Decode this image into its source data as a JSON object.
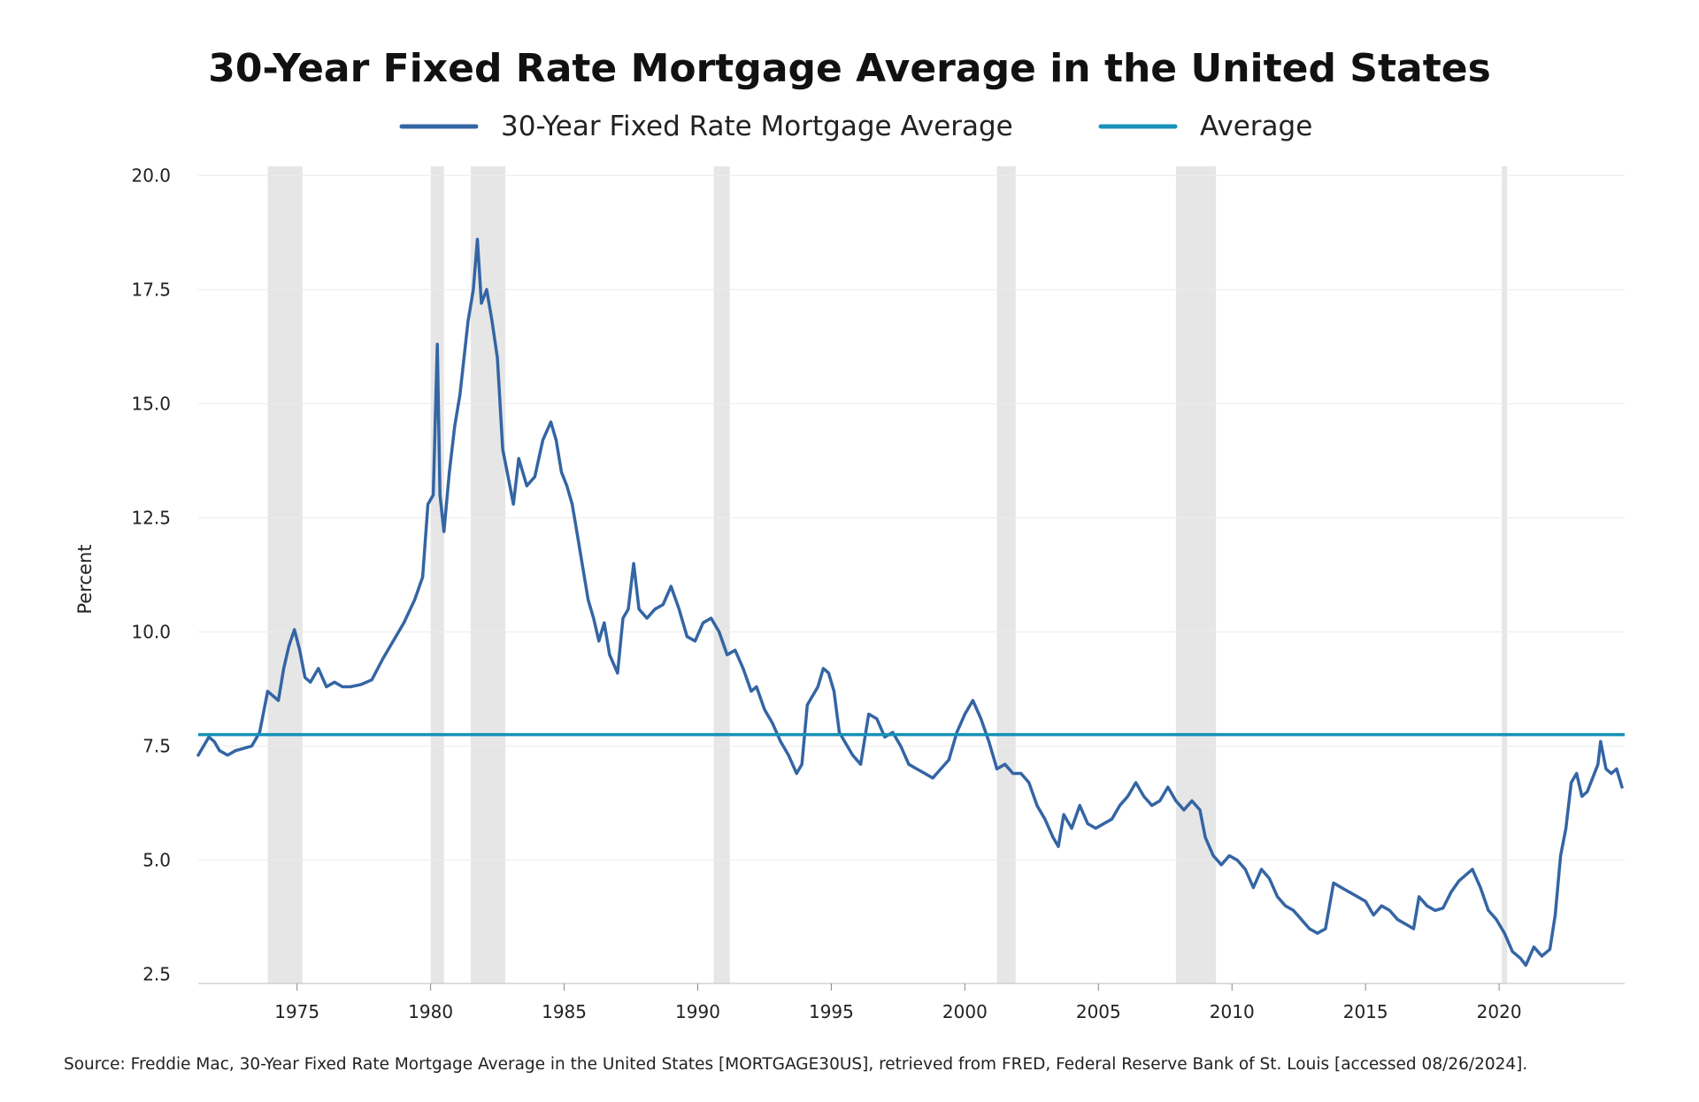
{
  "chart_data": {
    "type": "line",
    "title": "30-Year Fixed Rate Mortgage Average in the United States",
    "ylabel": "Percent",
    "xlabel": "",
    "xlim": [
      1971.3,
      2024.7
    ],
    "ylim": [
      2.3,
      20.2
    ],
    "x_ticks": [
      1975,
      1980,
      1985,
      1990,
      1995,
      2000,
      2005,
      2010,
      2015,
      2020
    ],
    "x_tick_labels": [
      "1975",
      "1980",
      "1985",
      "1990",
      "1995",
      "2000",
      "2005",
      "2010",
      "2015",
      "2020"
    ],
    "y_ticks": [
      2.5,
      5.0,
      7.5,
      10.0,
      12.5,
      15.0,
      17.5,
      20.0
    ],
    "y_tick_labels": [
      "2.5",
      "5.0",
      "7.5",
      "10.0",
      "12.5",
      "15.0",
      "17.5",
      "20.0"
    ],
    "grid": true,
    "legend_position": "top-center",
    "recession_periods": [
      [
        1973.9,
        1975.2
      ],
      [
        1980.0,
        1980.5
      ],
      [
        1981.5,
        1982.8
      ],
      [
        1990.6,
        1991.2
      ],
      [
        2001.2,
        2001.9
      ],
      [
        2007.9,
        2009.4
      ],
      [
        2020.1,
        2020.3
      ]
    ],
    "series": [
      {
        "name": "30-Year Fixed Rate Mortgage Average",
        "color": "#3465a4",
        "x": [
          1971.3,
          1971.5,
          1971.7,
          1971.9,
          1972.1,
          1972.4,
          1972.7,
          1973.0,
          1973.3,
          1973.6,
          1973.9,
          1974.1,
          1974.3,
          1974.5,
          1974.7,
          1974.9,
          1975.1,
          1975.3,
          1975.5,
          1975.8,
          1976.1,
          1976.4,
          1976.7,
          1977.0,
          1977.4,
          1977.8,
          1978.2,
          1978.6,
          1979.0,
          1979.4,
          1979.7,
          1979.9,
          1980.1,
          1980.25,
          1980.35,
          1980.5,
          1980.7,
          1980.9,
          1981.1,
          1981.4,
          1981.6,
          1981.75,
          1981.9,
          1982.1,
          1982.3,
          1982.5,
          1982.7,
          1982.9,
          1983.1,
          1983.3,
          1983.6,
          1983.9,
          1984.2,
          1984.5,
          1984.7,
          1984.9,
          1985.1,
          1985.3,
          1985.5,
          1985.7,
          1985.9,
          1986.1,
          1986.3,
          1986.5,
          1986.7,
          1987.0,
          1987.2,
          1987.4,
          1987.6,
          1987.8,
          1988.1,
          1988.4,
          1988.7,
          1989.0,
          1989.3,
          1989.6,
          1989.9,
          1990.2,
          1990.5,
          1990.8,
          1991.1,
          1991.4,
          1991.7,
          1992.0,
          1992.2,
          1992.5,
          1992.8,
          1993.1,
          1993.4,
          1993.7,
          1993.9,
          1994.1,
          1994.3,
          1994.5,
          1994.7,
          1994.9,
          1995.1,
          1995.3,
          1995.5,
          1995.8,
          1996.1,
          1996.4,
          1996.7,
          1997.0,
          1997.3,
          1997.6,
          1997.9,
          1998.2,
          1998.5,
          1998.8,
          1999.1,
          1999.4,
          1999.7,
          2000.0,
          2000.3,
          2000.6,
          2000.9,
          2001.2,
          2001.5,
          2001.8,
          2002.1,
          2002.4,
          2002.7,
          2003.0,
          2003.3,
          2003.5,
          2003.7,
          2004.0,
          2004.3,
          2004.6,
          2004.9,
          2005.2,
          2005.5,
          2005.8,
          2006.1,
          2006.4,
          2006.7,
          2007.0,
          2007.3,
          2007.6,
          2007.9,
          2008.2,
          2008.5,
          2008.8,
          2009.0,
          2009.3,
          2009.6,
          2009.9,
          2010.2,
          2010.5,
          2010.8,
          2011.1,
          2011.4,
          2011.7,
          2012.0,
          2012.3,
          2012.6,
          2012.9,
          2013.2,
          2013.5,
          2013.8,
          2014.1,
          2014.4,
          2014.7,
          2015.0,
          2015.3,
          2015.6,
          2015.9,
          2016.2,
          2016.5,
          2016.8,
          2017.0,
          2017.3,
          2017.6,
          2017.9,
          2018.2,
          2018.5,
          2018.8,
          2019.0,
          2019.3,
          2019.6,
          2019.9,
          2020.2,
          2020.5,
          2020.8,
          2021.0,
          2021.3,
          2021.6,
          2021.9,
          2022.1,
          2022.3,
          2022.5,
          2022.7,
          2022.9,
          2023.1,
          2023.3,
          2023.5,
          2023.7,
          2023.8,
          2024.0,
          2024.2,
          2024.4,
          2024.6
        ],
        "values": [
          7.3,
          7.5,
          7.7,
          7.6,
          7.4,
          7.3,
          7.4,
          7.45,
          7.5,
          7.8,
          8.7,
          8.6,
          8.5,
          9.2,
          9.7,
          10.05,
          9.6,
          9.0,
          8.9,
          9.2,
          8.8,
          8.9,
          8.8,
          8.8,
          8.85,
          8.95,
          9.4,
          9.8,
          10.2,
          10.7,
          11.2,
          12.8,
          13.0,
          16.3,
          13.0,
          12.2,
          13.5,
          14.5,
          15.2,
          16.8,
          17.5,
          18.6,
          17.2,
          17.5,
          16.8,
          16.0,
          14.0,
          13.4,
          12.8,
          13.8,
          13.2,
          13.4,
          14.2,
          14.6,
          14.2,
          13.5,
          13.2,
          12.8,
          12.1,
          11.4,
          10.7,
          10.3,
          9.8,
          10.2,
          9.5,
          9.1,
          10.3,
          10.5,
          11.5,
          10.5,
          10.3,
          10.5,
          10.6,
          11.0,
          10.5,
          9.9,
          9.8,
          10.2,
          10.3,
          10.0,
          9.5,
          9.6,
          9.2,
          8.7,
          8.8,
          8.3,
          8.0,
          7.6,
          7.3,
          6.9,
          7.1,
          8.4,
          8.6,
          8.8,
          9.2,
          9.1,
          8.7,
          7.8,
          7.6,
          7.3,
          7.1,
          8.2,
          8.1,
          7.7,
          7.8,
          7.5,
          7.1,
          7.0,
          6.9,
          6.8,
          7.0,
          7.2,
          7.8,
          8.2,
          8.5,
          8.1,
          7.6,
          7.0,
          7.1,
          6.9,
          6.9,
          6.7,
          6.2,
          5.9,
          5.5,
          5.3,
          6.0,
          5.7,
          6.2,
          5.8,
          5.7,
          5.8,
          5.9,
          6.2,
          6.4,
          6.7,
          6.4,
          6.2,
          6.3,
          6.6,
          6.3,
          6.1,
          6.3,
          6.1,
          5.5,
          5.1,
          4.9,
          5.1,
          5.0,
          4.8,
          4.4,
          4.8,
          4.6,
          4.2,
          4.0,
          3.9,
          3.7,
          3.5,
          3.4,
          3.5,
          4.5,
          4.4,
          4.3,
          4.2,
          4.1,
          3.8,
          4.0,
          3.9,
          3.7,
          3.6,
          3.5,
          4.2,
          4.0,
          3.9,
          3.95,
          4.3,
          4.55,
          4.7,
          4.8,
          4.4,
          3.9,
          3.7,
          3.4,
          3.0,
          2.85,
          2.7,
          3.1,
          2.9,
          3.05,
          3.8,
          5.1,
          5.7,
          6.7,
          6.9,
          6.4,
          6.5,
          6.8,
          7.1,
          7.6,
          7.0,
          6.9,
          7.0,
          6.6
        ]
      },
      {
        "name": "Average",
        "color": "#1791b8",
        "constant": 7.75
      }
    ],
    "source": "Source: Freddie Mac, 30-Year Fixed Rate Mortgage Average in the United States [MORTGAGE30US], retrieved from FRED, Federal Reserve Bank of St. Louis [accessed 08/26/2024]."
  }
}
